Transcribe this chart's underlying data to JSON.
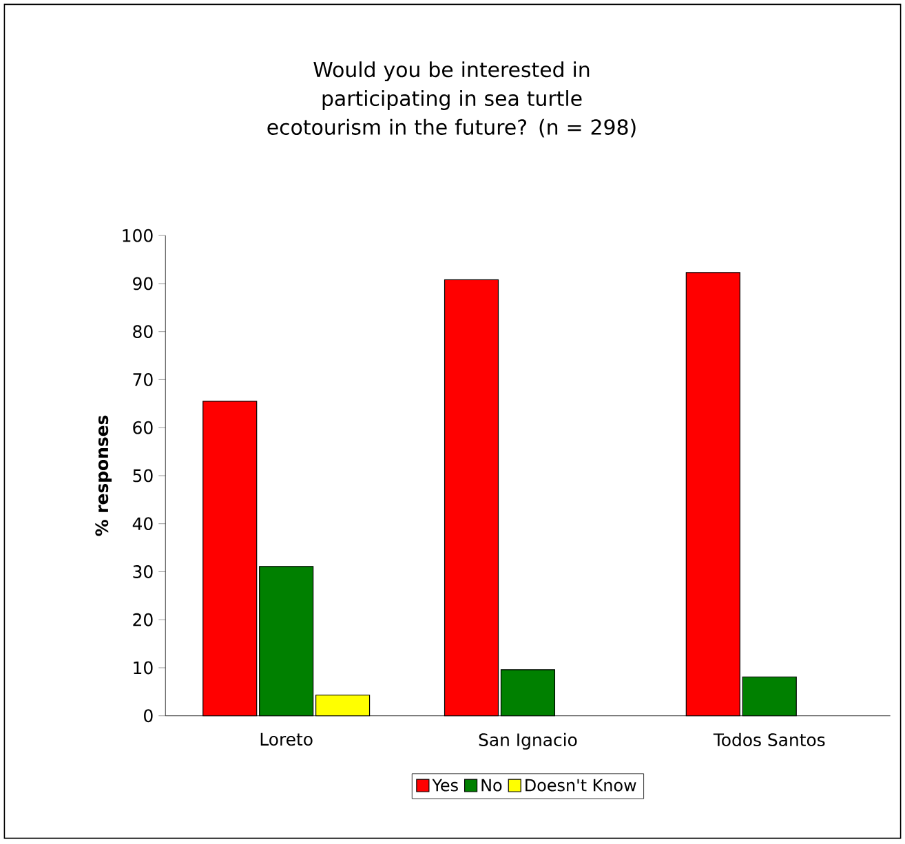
{
  "chart_data": {
    "type": "bar",
    "title": "Would you be interested in participating in sea turtle ecotourism in the future? (n = 298)",
    "ylabel": "% responses",
    "categories": [
      "Loreto",
      "San Ignacio",
      "Todos Santos"
    ],
    "series": [
      {
        "name": "Yes",
        "color": "#ff0000",
        "values": [
          65.5,
          90.8,
          92.3
        ]
      },
      {
        "name": "No",
        "color": "#008000",
        "values": [
          31.1,
          9.6,
          8.1
        ]
      },
      {
        "name": "Doesn't Know",
        "color": "#ffff00",
        "values": [
          4.3,
          null,
          null
        ]
      }
    ],
    "ylim": [
      0,
      100
    ],
    "yticks": [
      0,
      10,
      20,
      30,
      40,
      50,
      60,
      70,
      80,
      90,
      100
    ],
    "grid": false,
    "legend": "bottom"
  }
}
